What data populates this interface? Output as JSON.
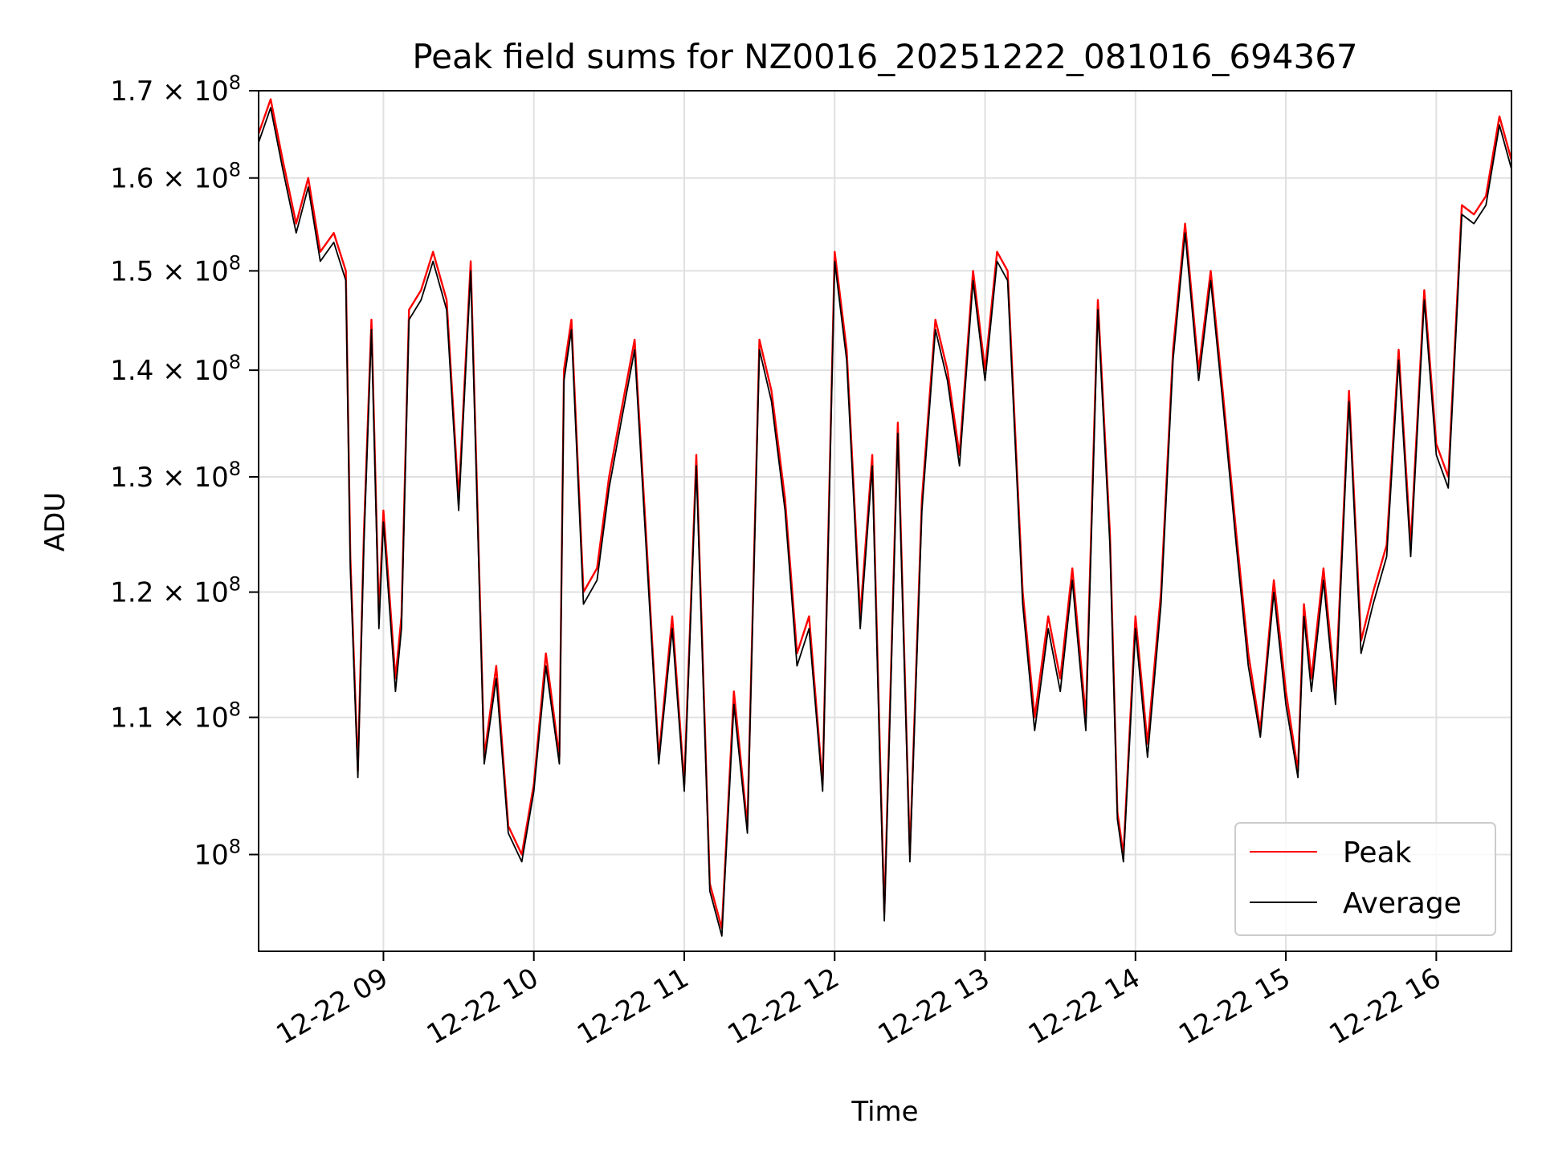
{
  "chart_data": {
    "type": "line",
    "title": "Peak field sums for NZ0016_20251222_081016_694367",
    "xlabel": "Time",
    "ylabel": "ADU",
    "yscale": "log",
    "grid": true,
    "legend_position": "lower-right",
    "xlim": [
      8.17,
      16.5
    ],
    "ylim": [
      93500000,
      170000000
    ],
    "x_ticks": [
      {
        "value": 9,
        "label": "12-22 09"
      },
      {
        "value": 10,
        "label": "12-22 10"
      },
      {
        "value": 11,
        "label": "12-22 11"
      },
      {
        "value": 12,
        "label": "12-22 12"
      },
      {
        "value": 13,
        "label": "12-22 13"
      },
      {
        "value": 14,
        "label": "12-22 14"
      },
      {
        "value": 15,
        "label": "12-22 15"
      },
      {
        "value": 16,
        "label": "12-22 16"
      }
    ],
    "y_ticks": [
      {
        "value": 100000000,
        "mant": "",
        "base": "10",
        "exp": "8"
      },
      {
        "value": 110000000,
        "mant": "1.1",
        "base": "10",
        "exp": "8"
      },
      {
        "value": 120000000,
        "mant": "1.2",
        "base": "10",
        "exp": "8"
      },
      {
        "value": 130000000,
        "mant": "1.3",
        "base": "10",
        "exp": "8"
      },
      {
        "value": 140000000,
        "mant": "1.4",
        "base": "10",
        "exp": "8"
      },
      {
        "value": 150000000,
        "mant": "1.5",
        "base": "10",
        "exp": "8"
      },
      {
        "value": 160000000,
        "mant": "1.6",
        "base": "10",
        "exp": "8"
      },
      {
        "value": 170000000,
        "mant": "1.7",
        "base": "10",
        "exp": "8"
      }
    ],
    "x": [
      8.17,
      8.25,
      8.33,
      8.42,
      8.5,
      8.58,
      8.67,
      8.75,
      8.78,
      8.83,
      8.87,
      8.92,
      8.97,
      9.0,
      9.08,
      9.12,
      9.17,
      9.25,
      9.33,
      9.42,
      9.5,
      9.58,
      9.62,
      9.67,
      9.75,
      9.83,
      9.92,
      10.0,
      10.08,
      10.17,
      10.2,
      10.25,
      10.33,
      10.42,
      10.5,
      10.58,
      10.67,
      10.75,
      10.83,
      10.92,
      11.0,
      11.08,
      11.17,
      11.25,
      11.33,
      11.42,
      11.5,
      11.58,
      11.67,
      11.75,
      11.83,
      11.92,
      12.0,
      12.08,
      12.17,
      12.25,
      12.3,
      12.33,
      12.42,
      12.5,
      12.58,
      12.67,
      12.75,
      12.83,
      12.92,
      13.0,
      13.08,
      13.15,
      13.25,
      13.33,
      13.42,
      13.5,
      13.58,
      13.67,
      13.75,
      13.83,
      13.88,
      13.92,
      14.0,
      14.08,
      14.17,
      14.25,
      14.33,
      14.42,
      14.5,
      14.58,
      14.67,
      14.75,
      14.83,
      14.92,
      15.0,
      15.08,
      15.12,
      15.17,
      15.25,
      15.33,
      15.42,
      15.5,
      15.58,
      15.67,
      15.75,
      15.83,
      15.92,
      16.0,
      16.08,
      16.17,
      16.25,
      16.33,
      16.42,
      16.5
    ],
    "series": [
      {
        "name": "Peak",
        "color": "#ff0000",
        "values": [
          165000000,
          169000000,
          162000000,
          155000000,
          160000000,
          152000000,
          154000000,
          150000000,
          123000000,
          106000000,
          125000000,
          145000000,
          118000000,
          127000000,
          113000000,
          118000000,
          146000000,
          148000000,
          152000000,
          147000000,
          128000000,
          151000000,
          130000000,
          107000000,
          114000000,
          102000000,
          100000000,
          105000000,
          115000000,
          107000000,
          140000000,
          145000000,
          120000000,
          122000000,
          130000000,
          136000000,
          143000000,
          124000000,
          107000000,
          118000000,
          105000000,
          132000000,
          98000000,
          95000000,
          112000000,
          102000000,
          143000000,
          138000000,
          128000000,
          115000000,
          118000000,
          105000000,
          152000000,
          142000000,
          118000000,
          132000000,
          108000000,
          96000000,
          135000000,
          100000000,
          128000000,
          145000000,
          140000000,
          132000000,
          150000000,
          140000000,
          152000000,
          150000000,
          120000000,
          110000000,
          118000000,
          113000000,
          122000000,
          110000000,
          147000000,
          125000000,
          103000000,
          100000000,
          118000000,
          108000000,
          120000000,
          142000000,
          155000000,
          140000000,
          150000000,
          138000000,
          125000000,
          115000000,
          109000000,
          121000000,
          112000000,
          106000000,
          119000000,
          113000000,
          122000000,
          112000000,
          138000000,
          116000000,
          120000000,
          124000000,
          142000000,
          124000000,
          148000000,
          133000000,
          130000000,
          157000000,
          156000000,
          158000000,
          167000000,
          162000000
        ]
      },
      {
        "name": "Average",
        "color": "#000000",
        "values": [
          164000000,
          168000000,
          161000000,
          154000000,
          159000000,
          151000000,
          153000000,
          149000000,
          122000000,
          105500000,
          124000000,
          144000000,
          117000000,
          126000000,
          112000000,
          117000000,
          145000000,
          147000000,
          151000000,
          146000000,
          127000000,
          150000000,
          129000000,
          106500000,
          113000000,
          101500000,
          99500000,
          104500000,
          114000000,
          106500000,
          139000000,
          144000000,
          119000000,
          121000000,
          129000000,
          135000000,
          142000000,
          123000000,
          106500000,
          117000000,
          104500000,
          131000000,
          97500000,
          94500000,
          111000000,
          101500000,
          142000000,
          137000000,
          127000000,
          114000000,
          117000000,
          104500000,
          151000000,
          141000000,
          117000000,
          131000000,
          107000000,
          95500000,
          134000000,
          99500000,
          127000000,
          144000000,
          139000000,
          131000000,
          149000000,
          139000000,
          151000000,
          149000000,
          119000000,
          109000000,
          117000000,
          112000000,
          121000000,
          109000000,
          146000000,
          124000000,
          102500000,
          99500000,
          117000000,
          107000000,
          119000000,
          141000000,
          154000000,
          139000000,
          149000000,
          137000000,
          124000000,
          114000000,
          108500000,
          120000000,
          111000000,
          105500000,
          118000000,
          112000000,
          121000000,
          111000000,
          137000000,
          115000000,
          119000000,
          123000000,
          141000000,
          123000000,
          147000000,
          132000000,
          129000000,
          156000000,
          155000000,
          157000000,
          166000000,
          161000000
        ]
      }
    ]
  }
}
